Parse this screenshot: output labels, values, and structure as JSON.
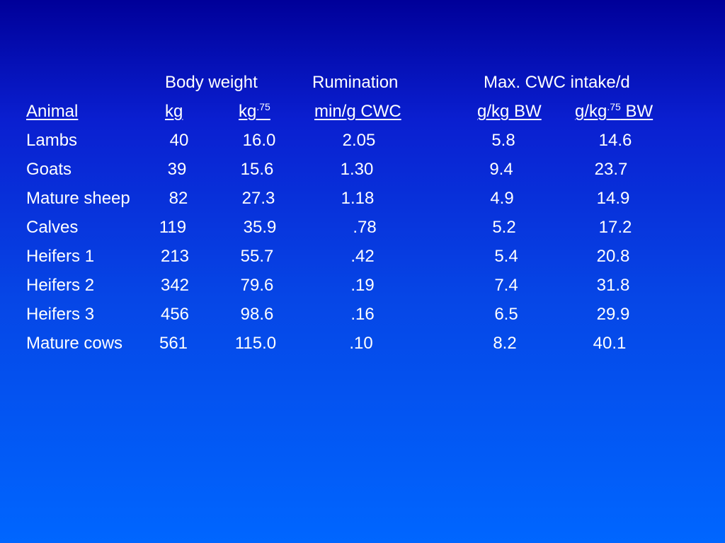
{
  "header": {
    "group_body_weight": "Body weight",
    "group_rumination": "Rumination",
    "group_max_intake": "Max. CWC intake/d"
  },
  "units": {
    "animal": "Animal",
    "kg": "kg",
    "kg75_base": "kg",
    "kg75_exp": ".75",
    "min_g_cwc": "min/g CWC",
    "g_kg_bw": "g/kg BW",
    "g_kg75_base": "g/kg",
    "g_kg75_exp": ".75",
    "g_kg75_suffix": " BW"
  },
  "rows": [
    {
      "animal": "Lambs",
      "kg": "40",
      "kg75": "16.0",
      "rumination": "2.05",
      "g_kg_bw": "5.8",
      "g_kg75_bw": "14.6"
    },
    {
      "animal": "Goats",
      "kg": "39",
      "kg75": "15.6",
      "rumination": "1.30",
      "g_kg_bw": "9.4",
      "g_kg75_bw": "23.7"
    },
    {
      "animal": "Mature sheep",
      "kg": "82",
      "kg75": "27.3",
      "rumination": "1.18",
      "g_kg_bw": "4.9",
      "g_kg75_bw": "14.9"
    },
    {
      "animal": "Calves",
      "kg": "119",
      "kg75": "35.9",
      "rumination": ".78",
      "g_kg_bw": "5.2",
      "g_kg75_bw": "17.2"
    },
    {
      "animal": "Heifers 1",
      "kg": "213",
      "kg75": "55.7",
      "rumination": ".42",
      "g_kg_bw": "5.4",
      "g_kg75_bw": "20.8"
    },
    {
      "animal": "Heifers 2",
      "kg": "342",
      "kg75": "79.6",
      "rumination": ".19",
      "g_kg_bw": "7.4",
      "g_kg75_bw": "31.8"
    },
    {
      "animal": "Heifers 3",
      "kg": "456",
      "kg75": "98.6",
      "rumination": ".16",
      "g_kg_bw": "6.5",
      "g_kg75_bw": "29.9"
    },
    {
      "animal": "Mature cows",
      "kg": "561",
      "kg75": "115.0",
      "rumination": ".10",
      "g_kg_bw": "8.2",
      "g_kg75_bw": "40.1"
    }
  ]
}
